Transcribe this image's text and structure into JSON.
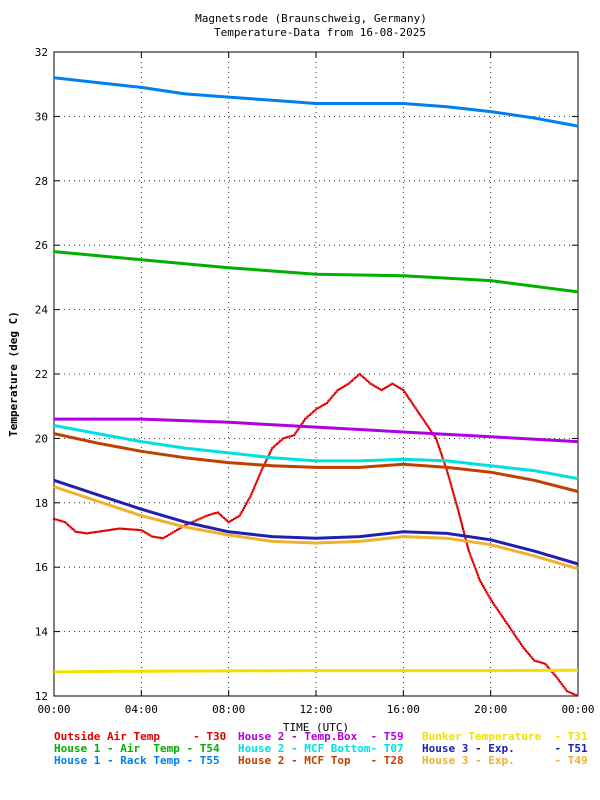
{
  "chart_data": {
    "type": "line",
    "title_line1": "Magnetsrode (Braunschweig, Germany)",
    "title_line2": "Temperature-Data from 16-08-2025",
    "xlabel": "TIME (UTC)",
    "ylabel": "Temperature (deg C)",
    "xlim": [
      0,
      24
    ],
    "ylim": [
      12,
      32
    ],
    "x_ticks": [
      0,
      4,
      8,
      12,
      16,
      20,
      24
    ],
    "x_tick_labels": [
      "00:00",
      "04:00",
      "08:00",
      "12:00",
      "16:00",
      "20:00",
      "00:00"
    ],
    "y_ticks": [
      12,
      14,
      16,
      18,
      20,
      22,
      24,
      26,
      28,
      30,
      32
    ],
    "y_tick_labels": [
      "12",
      "14",
      "16",
      "18",
      "20",
      "22",
      "24",
      "26",
      "28",
      "30",
      "32"
    ],
    "grid": true,
    "legend_placement": "bottom",
    "series": [
      {
        "name": "Outside Air Temp     - T30",
        "color": "#e00000",
        "style": "dots",
        "x": [
          0,
          0.5,
          1,
          1.5,
          2,
          3,
          4,
          4.5,
          5,
          6,
          7,
          7.5,
          8,
          8.5,
          9,
          9.5,
          10,
          10.5,
          11,
          11.5,
          12,
          12.5,
          13,
          13.5,
          14,
          14.5,
          15,
          15.5,
          16,
          16.5,
          17,
          17.5,
          18,
          18.5,
          19,
          19.5,
          20,
          20.5,
          21,
          21.5,
          22,
          22.5,
          23,
          23.5,
          24
        ],
        "y": [
          17.5,
          17.4,
          17.1,
          17.05,
          17.1,
          17.2,
          17.15,
          16.95,
          16.9,
          17.3,
          17.6,
          17.7,
          17.4,
          17.6,
          18.2,
          19.0,
          19.7,
          20.0,
          20.1,
          20.6,
          20.9,
          21.1,
          21.5,
          21.7,
          22.0,
          21.7,
          21.5,
          21.7,
          21.5,
          21.0,
          20.5,
          20.0,
          19.0,
          17.8,
          16.5,
          15.6,
          15.0,
          14.5,
          14.0,
          13.5,
          13.1,
          13.0,
          12.6,
          12.15,
          12.0
        ]
      },
      {
        "name": "House 2 - Temp.Box  - T59",
        "color": "#b000e0",
        "style": "line",
        "x": [
          0,
          4,
          8,
          12,
          16,
          20,
          24
        ],
        "y": [
          20.6,
          20.6,
          20.5,
          20.35,
          20.2,
          20.05,
          19.9
        ]
      },
      {
        "name": "Bunker Temperature  - T31",
        "color": "#f0e000",
        "style": "line",
        "x": [
          0,
          4,
          8,
          12,
          16,
          20,
          24
        ],
        "y": [
          12.75,
          12.77,
          12.78,
          12.79,
          12.79,
          12.79,
          12.8
        ]
      },
      {
        "name": "House 1 - Air  Temp - T54",
        "color": "#00b000",
        "style": "line",
        "x": [
          0,
          4,
          8,
          12,
          16,
          20,
          24
        ],
        "y": [
          25.8,
          25.55,
          25.3,
          25.1,
          25.05,
          24.9,
          24.55
        ]
      },
      {
        "name": "House 2 - MCF Bottom- T07",
        "color": "#00e0e0",
        "style": "line",
        "x": [
          0,
          2,
          4,
          6,
          8,
          10,
          12,
          14,
          16,
          18,
          20,
          22,
          24
        ],
        "y": [
          20.4,
          20.15,
          19.9,
          19.7,
          19.55,
          19.4,
          19.3,
          19.3,
          19.35,
          19.3,
          19.15,
          19.0,
          18.75
        ]
      },
      {
        "name": "House 3 - Exp.      - T51",
        "color": "#2020b0",
        "style": "line",
        "x": [
          0,
          2,
          4,
          6,
          8,
          10,
          12,
          14,
          16,
          18,
          20,
          22,
          24
        ],
        "y": [
          18.7,
          18.25,
          17.8,
          17.4,
          17.1,
          16.95,
          16.9,
          16.95,
          17.1,
          17.05,
          16.85,
          16.5,
          16.1
        ]
      },
      {
        "name": "House 1 - Rack Temp - T55",
        "color": "#0080f0",
        "style": "line",
        "x": [
          0,
          2,
          4,
          6,
          8,
          10,
          12,
          14,
          16,
          18,
          20,
          22,
          24
        ],
        "y": [
          31.2,
          31.05,
          30.9,
          30.7,
          30.6,
          30.5,
          30.4,
          30.4,
          30.4,
          30.3,
          30.15,
          29.95,
          29.7
        ]
      },
      {
        "name": "House 2 - MCF Top   - T28",
        "color": "#c04000",
        "style": "line",
        "x": [
          0,
          2,
          4,
          6,
          8,
          10,
          12,
          14,
          16,
          18,
          20,
          22,
          24
        ],
        "y": [
          20.15,
          19.85,
          19.6,
          19.4,
          19.25,
          19.15,
          19.1,
          19.1,
          19.2,
          19.1,
          18.95,
          18.7,
          18.35
        ]
      },
      {
        "name": "House 3 - Exp.      - T49",
        "color": "#f0b030",
        "style": "line",
        "x": [
          0,
          2,
          4,
          6,
          8,
          10,
          12,
          14,
          16,
          18,
          20,
          22,
          24
        ],
        "y": [
          18.5,
          18.05,
          17.6,
          17.25,
          17.0,
          16.8,
          16.75,
          16.8,
          16.95,
          16.9,
          16.7,
          16.35,
          15.95
        ]
      }
    ]
  }
}
